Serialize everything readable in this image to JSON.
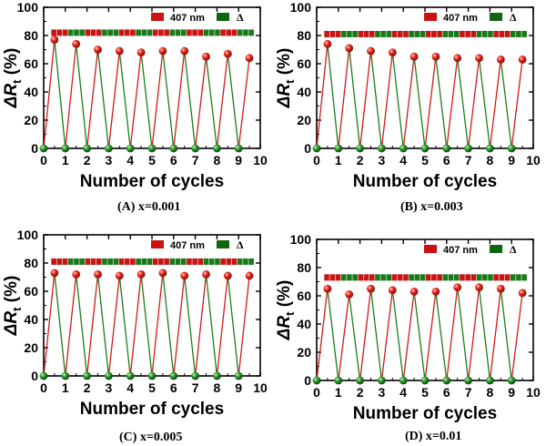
{
  "chart_data": [
    {
      "type": "scatter",
      "caption": "(A)  x=0.001",
      "xlabel": "Number of cycles",
      "ylabel_main": "ΔR",
      "ylabel_sub": "t",
      "ylabel_unit": " (%)",
      "xlim": [
        0,
        10
      ],
      "ylim": [
        0,
        100
      ],
      "xticks": [
        "0",
        "1",
        "2",
        "3",
        "4",
        "5",
        "6",
        "7",
        "8",
        "9",
        "10"
      ],
      "yticks": [
        "0",
        "20",
        "40",
        "60",
        "80",
        "100"
      ],
      "legend": [
        {
          "label": "407 nm",
          "color": "#cc1111"
        },
        {
          "label": "Δ",
          "color": "#116611"
        }
      ],
      "series": [
        {
          "name": "407 nm",
          "x": [
            0.5,
            1.5,
            2.5,
            3.5,
            4.5,
            5.5,
            6.5,
            7.5,
            8.5,
            9.5
          ],
          "y": [
            77,
            74,
            70,
            69,
            68,
            69,
            69,
            65,
            67,
            64
          ]
        },
        {
          "name": "Δ",
          "x": [
            0,
            1,
            2,
            3,
            4,
            5,
            6,
            7,
            8,
            9
          ],
          "y": [
            0,
            0,
            0,
            0,
            0,
            0,
            0,
            0,
            0,
            0
          ]
        }
      ],
      "band_y": 82
    },
    {
      "type": "scatter",
      "caption": "(B)  x=0.003",
      "xlabel": "Number of cycles",
      "ylabel_main": "ΔR",
      "ylabel_sub": "t",
      "ylabel_unit": " (%)",
      "xlim": [
        0,
        10
      ],
      "ylim": [
        0,
        100
      ],
      "xticks": [
        "0",
        "1",
        "2",
        "3",
        "4",
        "5",
        "6",
        "7",
        "8",
        "9",
        "10"
      ],
      "yticks": [
        "0",
        "20",
        "40",
        "60",
        "80",
        "100"
      ],
      "legend": [
        {
          "label": "407 nm",
          "color": "#cc1111"
        },
        {
          "label": "Δ",
          "color": "#116611"
        }
      ],
      "series": [
        {
          "name": "407 nm",
          "x": [
            0.5,
            1.5,
            2.5,
            3.5,
            4.5,
            5.5,
            6.5,
            7.5,
            8.5,
            9.5
          ],
          "y": [
            74,
            71,
            69,
            68,
            65,
            65,
            64,
            64,
            63,
            63
          ]
        },
        {
          "name": "Δ",
          "x": [
            0,
            1,
            2,
            3,
            4,
            5,
            6,
            7,
            8,
            9
          ],
          "y": [
            0,
            0,
            0,
            0,
            0,
            0,
            0,
            0,
            0,
            0
          ]
        }
      ],
      "band_y": 81
    },
    {
      "type": "scatter",
      "caption": "(C)  x=0.005",
      "xlabel": "Number of cycles",
      "ylabel_main": "ΔR",
      "ylabel_sub": "t",
      "ylabel_unit": " (%)",
      "xlim": [
        0,
        10
      ],
      "ylim": [
        0,
        100
      ],
      "xticks": [
        "0",
        "1",
        "2",
        "3",
        "4",
        "5",
        "6",
        "7",
        "8",
        "9",
        "10"
      ],
      "yticks": [
        "0",
        "20",
        "40",
        "60",
        "80",
        "100"
      ],
      "legend": [
        {
          "label": "407 nm",
          "color": "#cc1111"
        },
        {
          "label": "Δ",
          "color": "#116611"
        }
      ],
      "series": [
        {
          "name": "407 nm",
          "x": [
            0.5,
            1.5,
            2.5,
            3.5,
            4.5,
            5.5,
            6.5,
            7.5,
            8.5,
            9.5
          ],
          "y": [
            73,
            72,
            72,
            71,
            72,
            73,
            71,
            72,
            71,
            71
          ]
        },
        {
          "name": "Δ",
          "x": [
            0,
            1,
            2,
            3,
            4,
            5,
            6,
            7,
            8,
            9
          ],
          "y": [
            0,
            0,
            0,
            0,
            0,
            0,
            0,
            0,
            0,
            0
          ]
        }
      ],
      "band_y": 81
    },
    {
      "type": "scatter",
      "caption": "(D)  x=0.01",
      "xlabel": "Number of cycles",
      "ylabel_main": "ΔR",
      "ylabel_sub": "t",
      "ylabel_unit": " (%)",
      "xlim": [
        0,
        10
      ],
      "ylim": [
        0,
        100
      ],
      "xticks": [
        "0",
        "1",
        "2",
        "3",
        "4",
        "5",
        "6",
        "7",
        "8",
        "9",
        "10"
      ],
      "yticks": [
        "0",
        "20",
        "40",
        "60",
        "80",
        "100"
      ],
      "legend": [
        {
          "label": "407 nm",
          "color": "#cc1111"
        },
        {
          "label": "Δ",
          "color": "#116611"
        }
      ],
      "series": [
        {
          "name": "407 nm",
          "x": [
            0.5,
            1.5,
            2.5,
            3.5,
            4.5,
            5.5,
            6.5,
            7.5,
            8.5,
            9.5
          ],
          "y": [
            65,
            61,
            65,
            64,
            63,
            63,
            66,
            66,
            65,
            62
          ]
        },
        {
          "name": "Δ",
          "x": [
            0,
            1,
            2,
            3,
            4,
            5,
            6,
            7,
            8,
            9
          ],
          "y": [
            0,
            0,
            0,
            0,
            0,
            0,
            0,
            0,
            0,
            0
          ]
        }
      ],
      "band_y": 73
    }
  ]
}
